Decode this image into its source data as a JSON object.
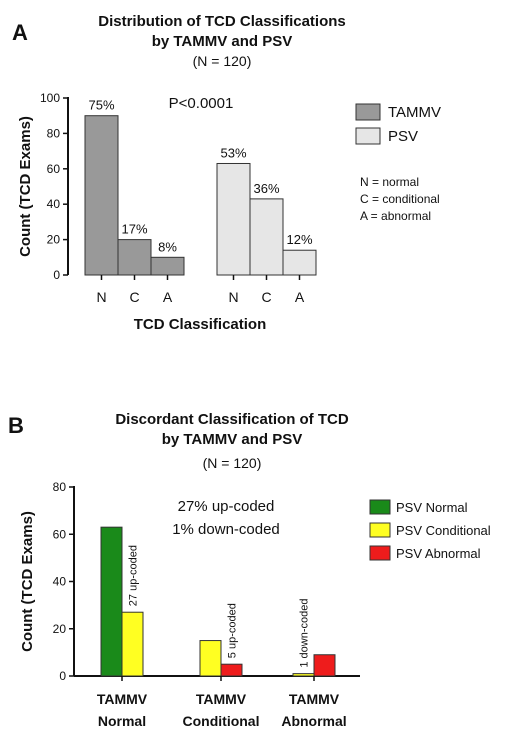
{
  "chart_data": [
    {
      "panel_label": "A",
      "type": "bar",
      "title_lines": [
        "Distribution of  TCD Classifications",
        "by TAMMV and PSV"
      ],
      "subtitle": "(N = 120)",
      "xlabel": "TCD Classification",
      "ylabel": "Count (TCD Exams)",
      "ylim": [
        0,
        100
      ],
      "yticks": [
        0,
        20,
        40,
        60,
        80,
        100
      ],
      "categories": [
        "N",
        "C",
        "A"
      ],
      "series": [
        {
          "name": "TAMMV",
          "color": "#999999",
          "values": [
            90,
            20,
            10
          ],
          "labels": [
            "75%",
            "17%",
            "8%"
          ]
        },
        {
          "name": "PSV",
          "color": "#e6e6e6",
          "values": [
            63,
            43,
            14
          ],
          "labels": [
            "53%",
            "36%",
            "12%"
          ]
        }
      ],
      "annotation": "P<0.0001",
      "key_lines": [
        "N = normal",
        "C = conditional",
        "A = abnormal"
      ],
      "legend_position": "right"
    },
    {
      "panel_label": "B",
      "type": "bar",
      "title_lines": [
        "Discordant Classification of TCD",
        "by TAMMV and PSV"
      ],
      "subtitle": "(N = 120)",
      "xlabel": "",
      "ylabel": "Count (TCD Exams)",
      "ylim": [
        0,
        80
      ],
      "yticks": [
        0,
        20,
        40,
        60,
        80
      ],
      "groups": [
        {
          "label_lines": [
            "TAMMV",
            "Normal"
          ]
        },
        {
          "label_lines": [
            "TAMMV",
            "Conditional"
          ]
        },
        {
          "label_lines": [
            "TAMMV",
            "Abnormal"
          ]
        }
      ],
      "bars": [
        {
          "group": 0,
          "series": "PSV Normal",
          "value": 63,
          "label": ""
        },
        {
          "group": 0,
          "series": "PSV Conditional",
          "value": 27,
          "label": "27 up-coded"
        },
        {
          "group": 1,
          "series": "PSV Conditional",
          "value": 15,
          "label": ""
        },
        {
          "group": 1,
          "series": "PSV Abnormal",
          "value": 5,
          "label": "5 up-coded"
        },
        {
          "group": 2,
          "series": "PSV Conditional",
          "value": 1,
          "label": "1 down-coded"
        },
        {
          "group": 2,
          "series": "PSV Abnormal",
          "value": 9,
          "label": ""
        }
      ],
      "legend": [
        {
          "name": "PSV Normal",
          "color": "#1a8a1a"
        },
        {
          "name": "PSV Conditional",
          "color": "#ffff22"
        },
        {
          "name": "PSV Abnormal",
          "color": "#ee1c1c"
        }
      ],
      "annotation_lines": [
        "27% up-coded",
        "1% down-coded"
      ],
      "legend_position": "right"
    }
  ]
}
